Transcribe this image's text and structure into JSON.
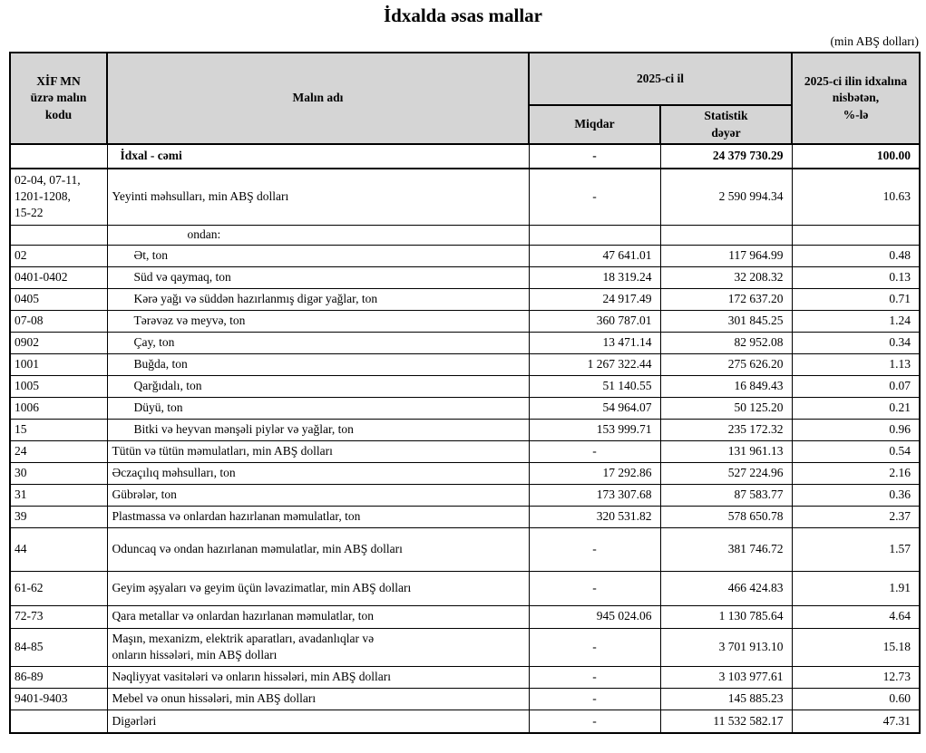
{
  "page": {
    "title": "İdxalda əsas mallar",
    "unit_note": "(min ABŞ dolları)"
  },
  "colors": {
    "header_bg": "#d5d5d5",
    "border": "#000000",
    "text": "#000000",
    "background": "#ffffff"
  },
  "table": {
    "headers": {
      "code": "XİF MN\nüzrə malın\nkodu",
      "name": "Malın adı",
      "year_group": "2025-ci il",
      "quantity": "Miqdar",
      "stat_value": "Statistik\ndəyər",
      "share": "2025-ci ilin idxalına\nnisbətən,\n%-lə"
    },
    "rows": [
      {
        "code": "",
        "name": "İdxal - cəmi",
        "indent": 0,
        "bold": true,
        "qty": "-",
        "value": "24 379 730.29",
        "pct": "100.00"
      },
      {
        "code": "02-04, 07-11,\n1201-1208,\n15-22",
        "name": "Yeyinti məhsulları, min ABŞ dolları",
        "indent": 0,
        "bold": false,
        "qty": "-",
        "value": "2 590 994.34",
        "pct": "10.63"
      },
      {
        "code": "",
        "name": "ondan:",
        "indent": 2,
        "bold": false,
        "qty": "",
        "value": "",
        "pct": ""
      },
      {
        "code": "02",
        "name": "Ət, ton",
        "indent": 1,
        "bold": false,
        "qty": "47 641.01",
        "value": "117 964.99",
        "pct": "0.48"
      },
      {
        "code": "0401-0402",
        "name": "Süd və qaymaq, ton",
        "indent": 1,
        "bold": false,
        "qty": "18 319.24",
        "value": "32 208.32",
        "pct": "0.13"
      },
      {
        "code": "0405",
        "name": "Kərə yağı və süddən hazırlanmış digər yağlar, ton",
        "indent": 1,
        "bold": false,
        "qty": "24 917.49",
        "value": "172 637.20",
        "pct": "0.71"
      },
      {
        "code": "07-08",
        "name": "Tərəvəz və meyvə, ton",
        "indent": 1,
        "bold": false,
        "qty": "360 787.01",
        "value": "301 845.25",
        "pct": "1.24"
      },
      {
        "code": "0902",
        "name": "Çay, ton",
        "indent": 1,
        "bold": false,
        "qty": "13 471.14",
        "value": "82 952.08",
        "pct": "0.34"
      },
      {
        "code": "1001",
        "name": "Buğda, ton",
        "indent": 1,
        "bold": false,
        "qty": "1 267 322.44",
        "value": "275 626.20",
        "pct": "1.13"
      },
      {
        "code": "1005",
        "name": "Qarğıdalı, ton",
        "indent": 1,
        "bold": false,
        "qty": "51 140.55",
        "value": "16 849.43",
        "pct": "0.07"
      },
      {
        "code": "1006",
        "name": "Düyü, ton",
        "indent": 1,
        "bold": false,
        "qty": "54 964.07",
        "value": "50 125.20",
        "pct": "0.21"
      },
      {
        "code": "15",
        "name": "Bitki və heyvan mənşəli piylər və yağlar, ton",
        "indent": 1,
        "bold": false,
        "qty": "153 999.71",
        "value": "235 172.32",
        "pct": "0.96"
      },
      {
        "code": "24",
        "name": "Tütün və tütün məmulatları, min ABŞ dolları",
        "indent": 0,
        "bold": false,
        "qty": "-",
        "value": "131 961.13",
        "pct": "0.54"
      },
      {
        "code": "30",
        "name": "Əczaçılıq məhsulları, ton",
        "indent": 0,
        "bold": false,
        "qty": "17 292.86",
        "value": "527 224.96",
        "pct": "2.16"
      },
      {
        "code": "31",
        "name": "Gübrələr, ton",
        "indent": 0,
        "bold": false,
        "qty": "173 307.68",
        "value": "87 583.77",
        "pct": "0.36"
      },
      {
        "code": "39",
        "name": "Plastmassa və onlardan hazırlanan məmulatlar, ton",
        "indent": 0,
        "bold": false,
        "qty": "320 531.82",
        "value": "578 650.78",
        "pct": "2.37"
      },
      {
        "code": "44",
        "name": "Oduncaq və ondan hazırlanan məmulatlar, min ABŞ dolları",
        "indent": 0,
        "bold": false,
        "qty": "-",
        "value": "381 746.72",
        "pct": "1.57"
      },
      {
        "code": "61-62",
        "name": "Geyim əşyaları və geyim üçün ləvazimatlar, min ABŞ dolları",
        "indent": 0,
        "bold": false,
        "qty": "-",
        "value": "466 424.83",
        "pct": "1.91"
      },
      {
        "code": "72-73",
        "name": "Qara metallar və onlardan hazırlanan məmulatlar, ton",
        "indent": 0,
        "bold": false,
        "qty": "945 024.06",
        "value": "1 130 785.64",
        "pct": "4.64"
      },
      {
        "code": "84-85",
        "name": "Maşın, mexanizm, elektrik aparatları, avadanlıqlar və\nonların hissələri, min ABŞ dolları",
        "indent": 0,
        "bold": false,
        "qty": "-",
        "value": "3 701 913.10",
        "pct": "15.18"
      },
      {
        "code": "86-89",
        "name": "Nəqliyyat vasitələri və onların hissələri, min ABŞ dolları",
        "indent": 0,
        "bold": false,
        "qty": "-",
        "value": "3 103 977.61",
        "pct": "12.73"
      },
      {
        "code": "9401-9403",
        "name": "Mebel və onun hissələri, min ABŞ dolları",
        "indent": 0,
        "bold": false,
        "qty": "-",
        "value": "145 885.23",
        "pct": "0.60"
      },
      {
        "code": "",
        "name": "Digərləri",
        "indent": 0,
        "bold": false,
        "qty": "-",
        "value": "11 532 582.17",
        "pct": "47.31"
      }
    ]
  }
}
